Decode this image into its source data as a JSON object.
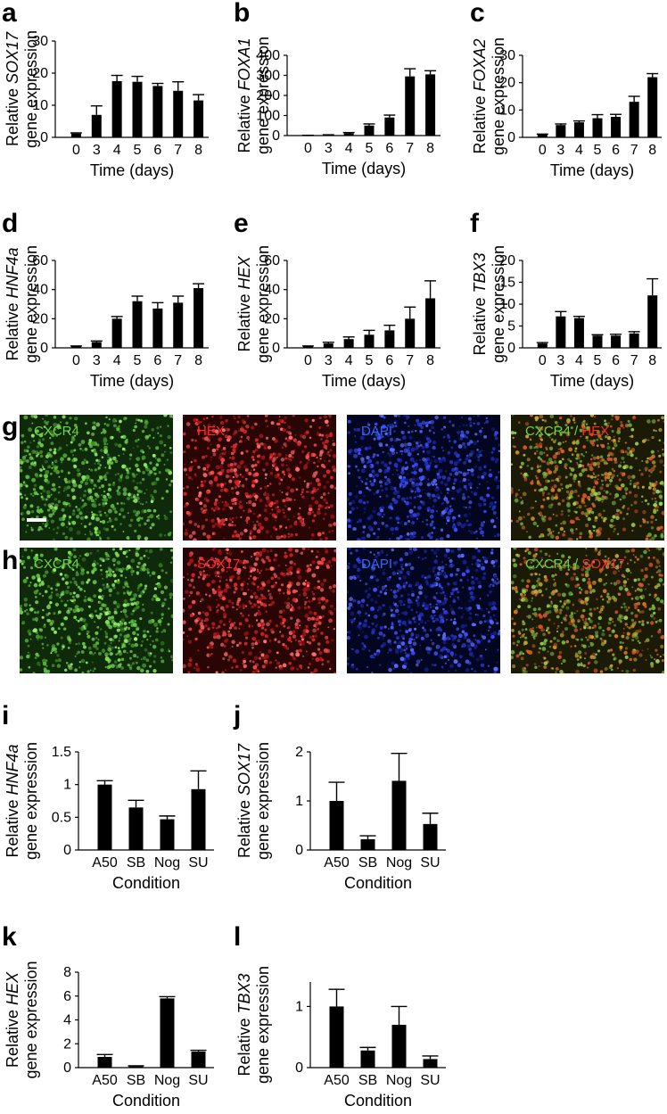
{
  "colors": {
    "green": "#6fd24a",
    "red": "#ff2a2a",
    "blue": "#2d6bff",
    "bar": "#000000"
  },
  "micrographs": {
    "g": {
      "letter": "g",
      "cells": [
        {
          "parts": [
            {
              "text": "CXCR4",
              "color": "green"
            }
          ],
          "tone": "green"
        },
        {
          "parts": [
            {
              "text": "HEX",
              "color": "red"
            }
          ],
          "tone": "red"
        },
        {
          "parts": [
            {
              "text": "DAPI",
              "color": "blue"
            }
          ],
          "tone": "blue"
        },
        {
          "parts": [
            {
              "text": "CXCR4",
              "color": "green"
            },
            {
              "text": " / ",
              "color": "green"
            },
            {
              "text": "HEX",
              "color": "red"
            }
          ],
          "tone": "merge"
        }
      ]
    },
    "h": {
      "letter": "h",
      "cells": [
        {
          "parts": [
            {
              "text": "CXCR4",
              "color": "green"
            }
          ],
          "tone": "green"
        },
        {
          "parts": [
            {
              "text": "SOX17",
              "color": "red"
            }
          ],
          "tone": "red"
        },
        {
          "parts": [
            {
              "text": "DAPI",
              "color": "blue"
            }
          ],
          "tone": "blue"
        },
        {
          "parts": [
            {
              "text": "CXCR4",
              "color": "green"
            },
            {
              "text": " / ",
              "color": "green"
            },
            {
              "text": "SOX17",
              "color": "red"
            }
          ],
          "tone": "merge"
        }
      ]
    }
  },
  "chart_data": [
    {
      "id": "a",
      "letter": "a",
      "type": "bar",
      "gene": "SOX17",
      "ylabel_prefix": "Relative ",
      "ylabel_line2": "gene expression",
      "xlabel": "Time (days)",
      "categories": [
        "0",
        "3",
        "4",
        "5",
        "6",
        "7",
        "8"
      ],
      "values": [
        1.2,
        7,
        17.5,
        17.3,
        16,
        14.5,
        11.5
      ],
      "errors": [
        0.2,
        2.8,
        1.8,
        1.7,
        0.8,
        2.8,
        1.8
      ],
      "ylim": [
        0,
        30
      ],
      "yticks": [
        0,
        10,
        20,
        30
      ]
    },
    {
      "id": "b",
      "letter": "b",
      "type": "bar",
      "gene": "FOXA1",
      "ylabel_prefix": "Relative ",
      "ylabel_line2": "gene expression",
      "xlabel": "Time (days)",
      "categories": [
        "0",
        "3",
        "4",
        "5",
        "6",
        "7",
        "8"
      ],
      "values": [
        1,
        3,
        12,
        50,
        90,
        295,
        305
      ],
      "errors": [
        0.5,
        1,
        3,
        8,
        12,
        38,
        18
      ],
      "ylim": [
        0,
        400
      ],
      "yticks": [
        0,
        100,
        200,
        300,
        400
      ]
    },
    {
      "id": "c",
      "letter": "c",
      "type": "bar",
      "gene": "FOXA2",
      "ylabel_prefix": "Relative ",
      "ylabel_line2": "gene expression",
      "xlabel": "Time (days)",
      "categories": [
        "0",
        "3",
        "4",
        "5",
        "6",
        "7",
        "8"
      ],
      "values": [
        1,
        4.5,
        5.5,
        7,
        7.5,
        13,
        22
      ],
      "errors": [
        0.2,
        0.4,
        0.5,
        1.3,
        0.9,
        2,
        1.3
      ],
      "ylim": [
        0,
        30
      ],
      "yticks": [
        0,
        10,
        20,
        30
      ]
    },
    {
      "id": "d",
      "letter": "d",
      "type": "bar",
      "gene": "HNF4a",
      "ylabel_prefix": "Relative ",
      "ylabel_line2": "gene expression",
      "xlabel": "Time (days)",
      "categories": [
        "0",
        "3",
        "4",
        "5",
        "6",
        "7",
        "8"
      ],
      "values": [
        1,
        4,
        20,
        32,
        27,
        31,
        41
      ],
      "errors": [
        0.3,
        0.7,
        1.5,
        3.5,
        4,
        4.5,
        3
      ],
      "ylim": [
        0,
        60
      ],
      "yticks": [
        0,
        20,
        40,
        60
      ]
    },
    {
      "id": "e",
      "letter": "e",
      "type": "bar",
      "gene": "HEX",
      "ylabel_prefix": "Relative ",
      "ylabel_line2": "gene expression",
      "xlabel": "Time (days)",
      "categories": [
        "0",
        "3",
        "4",
        "5",
        "6",
        "7",
        "8"
      ],
      "values": [
        1,
        3,
        6,
        9,
        12,
        20,
        34
      ],
      "errors": [
        0.3,
        0.8,
        1.5,
        3,
        3.5,
        8,
        12
      ],
      "ylim": [
        0,
        60
      ],
      "yticks": [
        0,
        20,
        40,
        60
      ]
    },
    {
      "id": "f",
      "letter": "f",
      "type": "bar",
      "gene": "TBX3",
      "ylabel_prefix": "Relative ",
      "ylabel_line2": "gene expression",
      "xlabel": "Time (days)",
      "categories": [
        "0",
        "3",
        "4",
        "5",
        "6",
        "7",
        "8"
      ],
      "values": [
        1,
        7.2,
        6.8,
        2.8,
        2.8,
        3.3,
        12
      ],
      "errors": [
        0.2,
        1.1,
        0.4,
        0.2,
        0.3,
        0.4,
        3.8
      ],
      "ylim": [
        0,
        20
      ],
      "yticks": [
        0,
        5,
        10,
        15,
        20
      ]
    },
    {
      "id": "i",
      "letter": "i",
      "type": "bar",
      "gene": "HNF4a",
      "ylabel_prefix": "Relative ",
      "ylabel_line2": "gene expression",
      "xlabel": "Condition",
      "categories": [
        "A50",
        "SB",
        "Nog",
        "SU"
      ],
      "values": [
        1.0,
        0.65,
        0.47,
        0.93
      ],
      "errors": [
        0.06,
        0.11,
        0.05,
        0.28
      ],
      "ylim": [
        0,
        1.5
      ],
      "yticks": [
        0,
        0.5,
        1,
        1.5
      ],
      "ytick_labels": [
        "0",
        "0.5",
        "1",
        "1.5"
      ]
    },
    {
      "id": "j",
      "letter": "j",
      "type": "bar",
      "gene": "SOX17",
      "ylabel_prefix": "Relative ",
      "ylabel_line2": "gene expression",
      "xlabel": "Condition",
      "categories": [
        "A50",
        "SB",
        "Nog",
        "SU"
      ],
      "values": [
        1.0,
        0.22,
        1.41,
        0.53
      ],
      "errors": [
        0.38,
        0.07,
        0.56,
        0.22
      ],
      "ylim": [
        0,
        2
      ],
      "yticks": [
        0,
        1,
        2
      ]
    },
    {
      "id": "k",
      "letter": "k",
      "type": "bar",
      "gene": "HEX",
      "ylabel_prefix": "Relative ",
      "ylabel_line2": "gene expression",
      "xlabel": "Condition",
      "categories": [
        "A50",
        "SB",
        "Nog",
        "SU"
      ],
      "values": [
        0.9,
        0.1,
        5.8,
        1.35
      ],
      "errors": [
        0.2,
        0.05,
        0.15,
        0.1
      ],
      "ylim": [
        0,
        8
      ],
      "yticks": [
        0,
        2,
        4,
        6,
        8
      ]
    },
    {
      "id": "l",
      "letter": "l",
      "type": "bar",
      "gene": "TBX3",
      "ylabel_prefix": "Relative ",
      "ylabel_line2": "gene expression",
      "xlabel": "Condition",
      "categories": [
        "A50",
        "SB",
        "Nog",
        "SU"
      ],
      "values": [
        1.0,
        0.28,
        0.7,
        0.14
      ],
      "errors": [
        0.28,
        0.05,
        0.3,
        0.05
      ],
      "ylim": [
        0,
        1.4
      ],
      "yticks": [
        0,
        1
      ],
      "ytick_labels": [
        "0",
        "1"
      ]
    }
  ]
}
